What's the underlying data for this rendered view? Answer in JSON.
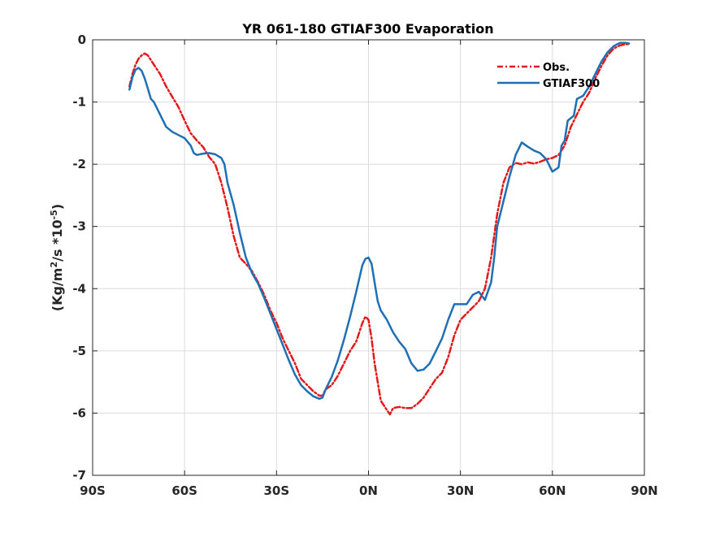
{
  "chart_data": {
    "type": "line",
    "title": "YR 061-180 GTIAF300 Evaporation",
    "xlabel": "",
    "ylabel": {
      "base": "(Kg/m",
      "sup1": "2",
      "mid": "/s *10",
      "sup2": "-5",
      "end": ")"
    },
    "xlim": [
      -90,
      90
    ],
    "ylim": [
      -7,
      0
    ],
    "xticks": [
      {
        "value": -90,
        "label": "90S"
      },
      {
        "value": -60,
        "label": "60S"
      },
      {
        "value": -30,
        "label": "30S"
      },
      {
        "value": 0,
        "label": "0N"
      },
      {
        "value": 30,
        "label": "30N"
      },
      {
        "value": 60,
        "label": "60N"
      },
      {
        "value": 90,
        "label": "90N"
      }
    ],
    "yticks": [
      {
        "value": 0,
        "label": "0"
      },
      {
        "value": -1,
        "label": "-1"
      },
      {
        "value": -2,
        "label": "-2"
      },
      {
        "value": -3,
        "label": "-3"
      },
      {
        "value": -4,
        "label": "-4"
      },
      {
        "value": -5,
        "label": "-5"
      },
      {
        "value": -6,
        "label": "-6"
      },
      {
        "value": -7,
        "label": "-7"
      }
    ],
    "grid": true,
    "legend_position": "top-right",
    "series": [
      {
        "name": "Obs.",
        "color": "#e31a1c",
        "style": "dash-dot",
        "points": [
          [
            -78,
            -0.75
          ],
          [
            -77,
            -0.55
          ],
          [
            -76,
            -0.4
          ],
          [
            -75,
            -0.3
          ],
          [
            -74,
            -0.25
          ],
          [
            -73,
            -0.22
          ],
          [
            -72,
            -0.25
          ],
          [
            -70,
            -0.4
          ],
          [
            -68,
            -0.55
          ],
          [
            -66,
            -0.75
          ],
          [
            -64,
            -0.92
          ],
          [
            -62,
            -1.08
          ],
          [
            -60,
            -1.3
          ],
          [
            -58,
            -1.5
          ],
          [
            -56,
            -1.62
          ],
          [
            -54,
            -1.72
          ],
          [
            -52,
            -1.88
          ],
          [
            -50,
            -2.0
          ],
          [
            -48,
            -2.3
          ],
          [
            -46,
            -2.7
          ],
          [
            -44,
            -3.15
          ],
          [
            -42,
            -3.5
          ],
          [
            -40,
            -3.6
          ],
          [
            -38,
            -3.72
          ],
          [
            -36,
            -3.9
          ],
          [
            -34,
            -4.1
          ],
          [
            -32,
            -4.35
          ],
          [
            -30,
            -4.55
          ],
          [
            -28,
            -4.8
          ],
          [
            -26,
            -5.0
          ],
          [
            -24,
            -5.2
          ],
          [
            -22,
            -5.45
          ],
          [
            -20,
            -5.55
          ],
          [
            -18,
            -5.65
          ],
          [
            -16,
            -5.72
          ],
          [
            -15,
            -5.72
          ],
          [
            -14,
            -5.62
          ],
          [
            -12,
            -5.55
          ],
          [
            -10,
            -5.4
          ],
          [
            -8,
            -5.2
          ],
          [
            -6,
            -5.0
          ],
          [
            -4,
            -4.85
          ],
          [
            -2,
            -4.55
          ],
          [
            -1,
            -4.45
          ],
          [
            0,
            -4.5
          ],
          [
            1,
            -4.8
          ],
          [
            2,
            -5.2
          ],
          [
            3,
            -5.5
          ],
          [
            4,
            -5.8
          ],
          [
            6,
            -5.95
          ],
          [
            7,
            -6.02
          ],
          [
            8,
            -5.92
          ],
          [
            10,
            -5.9
          ],
          [
            12,
            -5.92
          ],
          [
            14,
            -5.92
          ],
          [
            16,
            -5.85
          ],
          [
            18,
            -5.75
          ],
          [
            20,
            -5.6
          ],
          [
            22,
            -5.45
          ],
          [
            24,
            -5.35
          ],
          [
            26,
            -5.1
          ],
          [
            28,
            -4.75
          ],
          [
            30,
            -4.5
          ],
          [
            32,
            -4.4
          ],
          [
            34,
            -4.3
          ],
          [
            36,
            -4.2
          ],
          [
            38,
            -4.0
          ],
          [
            40,
            -3.5
          ],
          [
            42,
            -2.8
          ],
          [
            44,
            -2.3
          ],
          [
            46,
            -2.05
          ],
          [
            48,
            -1.98
          ],
          [
            50,
            -2.0
          ],
          [
            52,
            -1.97
          ],
          [
            54,
            -1.99
          ],
          [
            56,
            -1.96
          ],
          [
            58,
            -1.92
          ],
          [
            60,
            -1.9
          ],
          [
            62,
            -1.85
          ],
          [
            64,
            -1.7
          ],
          [
            66,
            -1.4
          ],
          [
            68,
            -1.2
          ],
          [
            70,
            -1.0
          ],
          [
            72,
            -0.85
          ],
          [
            74,
            -0.62
          ],
          [
            76,
            -0.42
          ],
          [
            78,
            -0.25
          ],
          [
            80,
            -0.14
          ],
          [
            82,
            -0.09
          ],
          [
            84,
            -0.07
          ],
          [
            85,
            -0.07
          ]
        ]
      },
      {
        "name": "GTIAF300",
        "color": "#1f6fb4",
        "style": "solid",
        "points": [
          [
            -78,
            -0.8
          ],
          [
            -77,
            -0.6
          ],
          [
            -76,
            -0.48
          ],
          [
            -75,
            -0.45
          ],
          [
            -74,
            -0.5
          ],
          [
            -73,
            -0.62
          ],
          [
            -72,
            -0.78
          ],
          [
            -71,
            -0.95
          ],
          [
            -70,
            -1.0
          ],
          [
            -68,
            -1.2
          ],
          [
            -66,
            -1.4
          ],
          [
            -64,
            -1.48
          ],
          [
            -62,
            -1.53
          ],
          [
            -60,
            -1.58
          ],
          [
            -58,
            -1.7
          ],
          [
            -57,
            -1.82
          ],
          [
            -56,
            -1.85
          ],
          [
            -54,
            -1.83
          ],
          [
            -52,
            -1.82
          ],
          [
            -50,
            -1.84
          ],
          [
            -48,
            -1.9
          ],
          [
            -47,
            -2.0
          ],
          [
            -46,
            -2.3
          ],
          [
            -44,
            -2.65
          ],
          [
            -42,
            -3.1
          ],
          [
            -40,
            -3.5
          ],
          [
            -38,
            -3.75
          ],
          [
            -36,
            -3.92
          ],
          [
            -34,
            -4.15
          ],
          [
            -32,
            -4.4
          ],
          [
            -30,
            -4.65
          ],
          [
            -28,
            -4.9
          ],
          [
            -26,
            -5.15
          ],
          [
            -24,
            -5.38
          ],
          [
            -22,
            -5.55
          ],
          [
            -20,
            -5.65
          ],
          [
            -18,
            -5.73
          ],
          [
            -16,
            -5.77
          ],
          [
            -15,
            -5.75
          ],
          [
            -14,
            -5.62
          ],
          [
            -12,
            -5.42
          ],
          [
            -10,
            -5.15
          ],
          [
            -8,
            -4.82
          ],
          [
            -6,
            -4.45
          ],
          [
            -4,
            -4.05
          ],
          [
            -2,
            -3.62
          ],
          [
            -1,
            -3.52
          ],
          [
            0,
            -3.5
          ],
          [
            1,
            -3.6
          ],
          [
            2,
            -3.9
          ],
          [
            3,
            -4.2
          ],
          [
            4,
            -4.35
          ],
          [
            6,
            -4.5
          ],
          [
            8,
            -4.7
          ],
          [
            10,
            -4.85
          ],
          [
            12,
            -4.97
          ],
          [
            14,
            -5.2
          ],
          [
            16,
            -5.32
          ],
          [
            18,
            -5.3
          ],
          [
            20,
            -5.2
          ],
          [
            22,
            -5.0
          ],
          [
            24,
            -4.8
          ],
          [
            26,
            -4.5
          ],
          [
            28,
            -4.25
          ],
          [
            30,
            -4.25
          ],
          [
            32,
            -4.25
          ],
          [
            34,
            -4.1
          ],
          [
            36,
            -4.05
          ],
          [
            38,
            -4.18
          ],
          [
            40,
            -3.9
          ],
          [
            41,
            -3.5
          ],
          [
            42,
            -3.0
          ],
          [
            44,
            -2.6
          ],
          [
            46,
            -2.2
          ],
          [
            48,
            -1.85
          ],
          [
            50,
            -1.65
          ],
          [
            52,
            -1.72
          ],
          [
            54,
            -1.78
          ],
          [
            56,
            -1.82
          ],
          [
            58,
            -1.92
          ],
          [
            60,
            -2.12
          ],
          [
            62,
            -2.05
          ],
          [
            63,
            -1.7
          ],
          [
            64,
            -1.62
          ],
          [
            65,
            -1.3
          ],
          [
            67,
            -1.22
          ],
          [
            68,
            -0.95
          ],
          [
            70,
            -0.9
          ],
          [
            72,
            -0.75
          ],
          [
            74,
            -0.55
          ],
          [
            76,
            -0.35
          ],
          [
            78,
            -0.2
          ],
          [
            80,
            -0.1
          ],
          [
            82,
            -0.05
          ],
          [
            84,
            -0.05
          ],
          [
            85,
            -0.06
          ]
        ]
      }
    ]
  }
}
